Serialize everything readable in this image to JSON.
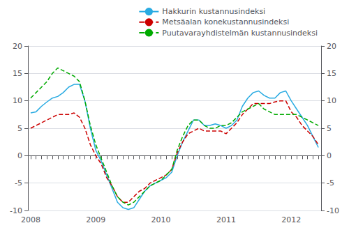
{
  "chart_data": {
    "type": "line",
    "categories": [
      "2008",
      null,
      null,
      null,
      null,
      null,
      null,
      null,
      null,
      null,
      null,
      null,
      "2009",
      null,
      null,
      null,
      null,
      null,
      null,
      null,
      null,
      null,
      null,
      null,
      "2010",
      null,
      null,
      null,
      null,
      null,
      null,
      null,
      null,
      null,
      null,
      null,
      "2011",
      null,
      null,
      null,
      null,
      null,
      null,
      null,
      null,
      null,
      null,
      null,
      "2012",
      null,
      null,
      null,
      null,
      null
    ],
    "series": [
      {
        "name": "Hakkurin kustannusindeksi",
        "color": "#29abe2",
        "line_style": "solid",
        "values": [
          7.8,
          8.0,
          9.0,
          9.8,
          10.5,
          10.8,
          11.5,
          12.5,
          13.0,
          13.0,
          10.0,
          5.0,
          1.0,
          -1.0,
          -3.5,
          -6.0,
          -8.5,
          -9.5,
          -9.8,
          -9.5,
          -8.0,
          -6.5,
          -5.5,
          -5.0,
          -4.5,
          -4.0,
          -3.0,
          0.0,
          2.5,
          4.5,
          6.5,
          6.5,
          5.5,
          5.5,
          5.8,
          5.5,
          5.0,
          5.5,
          6.5,
          9.0,
          10.5,
          11.5,
          11.8,
          11.0,
          10.5,
          10.5,
          11.5,
          11.8,
          10.0,
          8.5,
          7.0,
          5.5,
          3.5,
          1.5
        ]
      },
      {
        "name": "Metsäalan konekustannusindeksi",
        "color": "#cc0000",
        "line_style": "dashed",
        "values": [
          5.0,
          5.5,
          6.0,
          6.5,
          7.0,
          7.5,
          7.5,
          7.5,
          7.8,
          7.0,
          5.0,
          2.0,
          0.0,
          -1.5,
          -4.0,
          -5.5,
          -7.5,
          -8.5,
          -8.5,
          -7.5,
          -6.5,
          -6.0,
          -5.0,
          -4.5,
          -4.0,
          -3.5,
          -2.5,
          0.5,
          2.5,
          4.0,
          4.5,
          5.0,
          4.5,
          4.5,
          4.5,
          4.5,
          4.0,
          5.0,
          6.0,
          7.5,
          8.5,
          9.5,
          9.5,
          9.5,
          9.5,
          9.8,
          10.0,
          10.0,
          8.0,
          7.0,
          5.5,
          4.5,
          3.5,
          2.0
        ]
      },
      {
        "name": "Puutavarayhdistelmän kustannusindeksi",
        "color": "#00aa00",
        "line_style": "dashed",
        "values": [
          10.5,
          11.5,
          12.5,
          13.5,
          15.0,
          16.0,
          15.5,
          15.0,
          14.5,
          13.5,
          10.0,
          5.5,
          2.0,
          -0.5,
          -3.0,
          -5.5,
          -7.5,
          -8.5,
          -9.0,
          -8.5,
          -7.5,
          -6.5,
          -5.5,
          -5.0,
          -4.5,
          -3.5,
          -2.5,
          1.0,
          3.5,
          5.5,
          6.5,
          6.5,
          5.5,
          5.0,
          5.0,
          5.5,
          5.5,
          6.0,
          7.0,
          8.0,
          8.5,
          9.0,
          9.5,
          8.5,
          8.0,
          7.5,
          7.5,
          7.5,
          7.5,
          7.5,
          7.0,
          6.5,
          6.0,
          5.5
        ]
      }
    ],
    "ylim": [
      -10,
      20
    ],
    "yticks": [
      -10,
      -5,
      0,
      5,
      10,
      15,
      20
    ],
    "y2lim": [
      -10,
      20
    ],
    "y2ticks": [
      -10,
      -5,
      0,
      5,
      10,
      15,
      20
    ],
    "grid": true,
    "legend": "upper right"
  }
}
